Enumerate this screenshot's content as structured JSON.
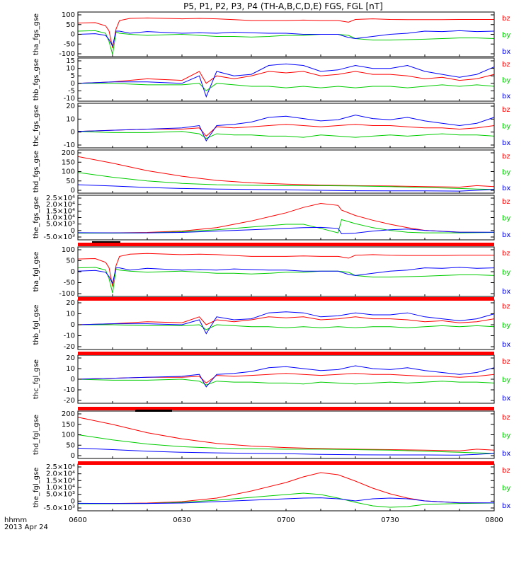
{
  "title": "P5, P1, P2, P3, P4 (TH-A,B,C,D,E) FGS, FGL [nT]",
  "time_axis": {
    "row_label": "hhmm",
    "date_label": "2013 Apr 24",
    "ticks": [
      "0600",
      "0630",
      "0700",
      "0730",
      "0800"
    ]
  },
  "colors": {
    "bz": "#ff0000",
    "by": "#00cc00",
    "bx": "#0000ff",
    "frame": "#000000",
    "status_bar": "#ff0000"
  },
  "chart_data": [
    {
      "type": "line",
      "ylabel": "tha_fgs_gse",
      "yticks": [
        "100",
        "50",
        "0",
        "-50",
        "-100"
      ],
      "ylim": [
        -100,
        110
      ],
      "legend": [
        "bz",
        "by",
        "bx"
      ],
      "x": [
        0,
        5,
        8,
        9,
        10,
        11,
        12,
        15,
        20,
        30,
        35,
        40,
        45,
        50,
        55,
        60,
        65,
        70,
        75,
        78,
        80,
        85,
        90,
        95,
        100,
        105,
        110,
        115,
        120
      ],
      "series": [
        {
          "name": "bz",
          "values": [
            58,
            60,
            45,
            20,
            -60,
            30,
            70,
            80,
            82,
            78,
            80,
            78,
            74,
            70,
            70,
            70,
            72,
            70,
            70,
            62,
            75,
            78,
            75,
            74,
            74,
            74,
            75,
            75,
            75
          ]
        },
        {
          "name": "by",
          "values": [
            20,
            22,
            10,
            -30,
            -90,
            15,
            10,
            5,
            0,
            5,
            0,
            -5,
            -5,
            -8,
            -5,
            0,
            0,
            5,
            5,
            0,
            -15,
            -22,
            -22,
            -20,
            -18,
            -15,
            -12,
            -12,
            -15
          ]
        },
        {
          "name": "bx",
          "values": [
            5,
            8,
            0,
            -20,
            -50,
            20,
            20,
            10,
            18,
            10,
            12,
            10,
            15,
            12,
            10,
            10,
            5,
            5,
            5,
            -10,
            -15,
            -5,
            5,
            10,
            20,
            18,
            22,
            18,
            20
          ]
        }
      ]
    },
    {
      "type": "line",
      "ylabel": "thb_fgs_gse",
      "yticks": [
        "15",
        "10",
        "5",
        "0",
        "-5",
        "-10"
      ],
      "ylim": [
        -12,
        17
      ],
      "legend": [
        "bz",
        "by",
        "bx"
      ],
      "x": [
        0,
        10,
        20,
        30,
        35,
        37,
        40,
        45,
        50,
        55,
        60,
        65,
        70,
        75,
        80,
        85,
        90,
        95,
        100,
        105,
        110,
        115,
        120
      ],
      "series": [
        {
          "name": "bz",
          "values": [
            0,
            1,
            3,
            2,
            8,
            0,
            5,
            3,
            5,
            8,
            7,
            8,
            5,
            6,
            8,
            6,
            6,
            5,
            3,
            4,
            2,
            3,
            6
          ]
        },
        {
          "name": "by",
          "values": [
            0,
            0,
            -1,
            -1,
            0,
            -5,
            0,
            -1,
            -2,
            -2,
            -3,
            -2,
            -3,
            -2,
            -3,
            -2,
            -2,
            -3,
            -2,
            -1,
            -2,
            -1,
            -2
          ]
        },
        {
          "name": "bx",
          "values": [
            0,
            1,
            1,
            0,
            5,
            -9,
            8,
            5,
            6,
            12,
            13,
            12,
            8,
            9,
            12,
            10,
            10,
            12,
            8,
            6,
            4,
            6,
            11
          ]
        }
      ]
    },
    {
      "type": "line",
      "ylabel": "thc_fgs_gse",
      "yticks": [
        "20",
        "10",
        "0",
        "-10"
      ],
      "ylim": [
        -14,
        24
      ],
      "legend": [
        "bz",
        "by",
        "bx"
      ],
      "x": [
        0,
        10,
        20,
        30,
        35,
        37,
        40,
        45,
        50,
        55,
        60,
        65,
        70,
        75,
        80,
        85,
        90,
        95,
        100,
        105,
        110,
        115,
        120
      ],
      "series": [
        {
          "name": "bz",
          "values": [
            0,
            1,
            2,
            2,
            3,
            -4,
            4,
            3,
            4,
            5,
            6,
            5,
            4,
            5,
            6,
            5,
            5,
            4,
            3,
            3,
            2,
            3,
            5
          ]
        },
        {
          "name": "by",
          "values": [
            0,
            -1,
            -1,
            0,
            -2,
            -6,
            -2,
            -3,
            -3,
            -4,
            -4,
            -5,
            -3,
            -4,
            -5,
            -4,
            -3,
            -4,
            -3,
            -2,
            -3,
            -3,
            -4
          ]
        },
        {
          "name": "bx",
          "values": [
            0,
            1,
            2,
            3,
            5,
            -8,
            5,
            6,
            8,
            12,
            13,
            11,
            9,
            10,
            14,
            11,
            10,
            12,
            9,
            7,
            5,
            7,
            12
          ]
        }
      ]
    },
    {
      "type": "line",
      "ylabel": "thd_fgs_gse",
      "yticks": [
        "200",
        "150",
        "100",
        "50",
        "0"
      ],
      "ylim": [
        -10,
        220
      ],
      "legend": [
        "bz",
        "by",
        "bx"
      ],
      "x": [
        0,
        10,
        20,
        30,
        40,
        50,
        60,
        70,
        80,
        90,
        100,
        110,
        115,
        120
      ],
      "series": [
        {
          "name": "bz",
          "values": [
            185,
            150,
            110,
            80,
            58,
            45,
            38,
            33,
            30,
            28,
            25,
            22,
            30,
            25
          ]
        },
        {
          "name": "by",
          "values": [
            100,
            75,
            55,
            42,
            35,
            32,
            30,
            30,
            28,
            25,
            20,
            15,
            12,
            10
          ]
        },
        {
          "name": "bx",
          "values": [
            35,
            28,
            20,
            15,
            12,
            10,
            8,
            5,
            3,
            2,
            2,
            1,
            5,
            10
          ]
        }
      ]
    },
    {
      "type": "line",
      "ylabel": "the_fgs_gse",
      "yticks": [
        "2.5×10⁴",
        "2.0×10⁴",
        "1.5×10⁴",
        "1.0×10⁴",
        "5.0×10³",
        "0",
        "-5.0×10³"
      ],
      "ylim": [
        -6000,
        27000
      ],
      "legend": [
        "bz",
        "by",
        "bx"
      ],
      "x": [
        0,
        10,
        20,
        30,
        40,
        50,
        60,
        65,
        70,
        75,
        76,
        80,
        85,
        90,
        95,
        100,
        110,
        120
      ],
      "series": [
        {
          "name": "bz",
          "values": [
            -1000,
            -800,
            -500,
            500,
            3000,
            8000,
            14000,
            18000,
            21000,
            19500,
            16000,
            12000,
            8500,
            5500,
            3000,
            1000,
            -300,
            -500
          ]
        },
        {
          "name": "by",
          "values": [
            -1000,
            -1000,
            -800,
            0,
            1500,
            3500,
            5500,
            5500,
            2500,
            -800,
            9000,
            6000,
            3000,
            1000,
            -400,
            -800,
            -800,
            -500
          ]
        },
        {
          "name": "bx",
          "values": [
            -700,
            -800,
            -800,
            -500,
            500,
            1500,
            2500,
            3000,
            3200,
            2500,
            -1500,
            -1000,
            500,
            1500,
            2000,
            1000,
            -400,
            -400
          ]
        }
      ]
    },
    {
      "type": "line",
      "ylabel": "tha_fgl_gse",
      "yticks": [
        "100",
        "50",
        "0",
        "-50",
        "-100"
      ],
      "ylim": [
        -110,
        115
      ],
      "legend": [
        "bz",
        "by",
        "bx"
      ],
      "x": [
        0,
        5,
        8,
        9,
        10,
        11,
        12,
        15,
        20,
        30,
        35,
        40,
        45,
        50,
        55,
        60,
        65,
        70,
        75,
        78,
        80,
        85,
        90,
        95,
        100,
        105,
        110,
        115,
        120
      ],
      "series": [
        {
          "name": "bz",
          "values": [
            60,
            62,
            45,
            20,
            -65,
            30,
            72,
            82,
            85,
            80,
            82,
            80,
            76,
            72,
            72,
            72,
            74,
            72,
            72,
            64,
            77,
            80,
            77,
            76,
            76,
            76,
            77,
            77,
            77
          ]
        },
        {
          "name": "by",
          "values": [
            20,
            22,
            10,
            -30,
            -95,
            15,
            10,
            5,
            0,
            5,
            0,
            -5,
            -5,
            -8,
            -5,
            0,
            0,
            5,
            5,
            0,
            -15,
            -22,
            -22,
            -20,
            -18,
            -15,
            -12,
            -12,
            -15
          ]
        },
        {
          "name": "bx",
          "values": [
            5,
            8,
            0,
            -20,
            -50,
            20,
            20,
            10,
            18,
            10,
            12,
            10,
            15,
            12,
            10,
            10,
            5,
            5,
            5,
            -10,
            -15,
            -5,
            5,
            10,
            20,
            18,
            22,
            18,
            20
          ]
        }
      ]
    },
    {
      "type": "line",
      "ylabel": "thb_fgl_gse",
      "yticks": [
        "20",
        "10",
        "0",
        "-10",
        "-20"
      ],
      "ylim": [
        -25,
        25
      ],
      "legend": [
        "bz",
        "by",
        "bx"
      ],
      "x": [
        0,
        10,
        20,
        30,
        35,
        37,
        40,
        45,
        50,
        55,
        60,
        65,
        70,
        75,
        80,
        85,
        90,
        95,
        100,
        105,
        110,
        115,
        120
      ],
      "series": [
        {
          "name": "bz",
          "values": [
            0,
            1,
            3,
            2,
            8,
            0,
            5,
            3,
            5,
            8,
            7,
            8,
            5,
            6,
            8,
            6,
            6,
            5,
            3,
            4,
            2,
            3,
            6
          ]
        },
        {
          "name": "by",
          "values": [
            0,
            0,
            -1,
            -1,
            0,
            -5,
            0,
            -1,
            -2,
            -2,
            -3,
            -2,
            -3,
            -2,
            -3,
            -2,
            -2,
            -3,
            -2,
            -1,
            -2,
            -1,
            -2
          ]
        },
        {
          "name": "bx",
          "values": [
            0,
            1,
            1,
            0,
            5,
            -9,
            8,
            5,
            6,
            12,
            13,
            12,
            8,
            9,
            12,
            10,
            10,
            12,
            8,
            6,
            4,
            6,
            11
          ]
        }
      ]
    },
    {
      "type": "line",
      "ylabel": "thc_fgl_gse",
      "yticks": [
        "20",
        "10",
        "0",
        "-10",
        "-20"
      ],
      "ylim": [
        -25,
        25
      ],
      "legend": [
        "bz",
        "by",
        "bx"
      ],
      "x": [
        0,
        10,
        20,
        30,
        35,
        37,
        40,
        45,
        50,
        55,
        60,
        65,
        70,
        75,
        80,
        85,
        90,
        95,
        100,
        105,
        110,
        115,
        120
      ],
      "series": [
        {
          "name": "bz",
          "values": [
            0,
            1,
            2,
            2,
            3,
            -4,
            4,
            3,
            4,
            5,
            6,
            5,
            4,
            5,
            6,
            5,
            5,
            4,
            3,
            3,
            2,
            3,
            5
          ]
        },
        {
          "name": "by",
          "values": [
            0,
            -1,
            -1,
            0,
            -2,
            -6,
            -2,
            -3,
            -3,
            -4,
            -4,
            -5,
            -3,
            -4,
            -5,
            -4,
            -3,
            -4,
            -3,
            -2,
            -3,
            -3,
            -4
          ]
        },
        {
          "name": "bx",
          "values": [
            0,
            1,
            2,
            3,
            5,
            -8,
            5,
            6,
            8,
            12,
            13,
            11,
            9,
            10,
            14,
            11,
            10,
            12,
            9,
            7,
            5,
            7,
            12
          ]
        }
      ]
    },
    {
      "type": "line",
      "ylabel": "thd_fgl_gse",
      "yticks": [
        "200",
        "150",
        "100",
        "50",
        "0"
      ],
      "ylim": [
        -15,
        215
      ],
      "legend": [
        "bz",
        "by",
        "bx"
      ],
      "x": [
        0,
        10,
        20,
        30,
        40,
        50,
        60,
        70,
        80,
        90,
        100,
        110,
        115,
        120
      ],
      "series": [
        {
          "name": "bz",
          "values": [
            185,
            150,
            110,
            80,
            58,
            45,
            38,
            33,
            30,
            28,
            25,
            22,
            30,
            25
          ]
        },
        {
          "name": "by",
          "values": [
            100,
            75,
            55,
            42,
            35,
            32,
            30,
            30,
            28,
            25,
            20,
            15,
            12,
            10
          ]
        },
        {
          "name": "bx",
          "values": [
            35,
            28,
            20,
            15,
            12,
            10,
            8,
            5,
            3,
            2,
            2,
            1,
            5,
            10
          ]
        }
      ]
    },
    {
      "type": "line",
      "ylabel": "the_fgl_gse",
      "yticks": [
        "2.5×10⁴",
        "2.0×10⁴",
        "1.5×10⁴",
        "1.0×10⁴",
        "5.0×10³",
        "0",
        "-5.0×10³"
      ],
      "ylim": [
        -6000,
        27000
      ],
      "legend": [
        "bz",
        "by",
        "bx"
      ],
      "x": [
        0,
        10,
        20,
        30,
        40,
        50,
        60,
        65,
        70,
        75,
        80,
        85,
        90,
        95,
        100,
        110,
        120
      ],
      "series": [
        {
          "name": "bz",
          "values": [
            -1000,
            -800,
            -500,
            500,
            3000,
            8000,
            14000,
            18000,
            21000,
            19500,
            15000,
            10000,
            6000,
            3000,
            1000,
            -300,
            -500
          ]
        },
        {
          "name": "by",
          "values": [
            -1000,
            -1000,
            -800,
            0,
            1500,
            3500,
            5500,
            6500,
            5500,
            3000,
            0,
            -2500,
            -3500,
            -3000,
            -1500,
            -800,
            -500
          ]
        },
        {
          "name": "bx",
          "values": [
            -700,
            -800,
            -800,
            -500,
            500,
            1500,
            2500,
            3000,
            3200,
            2500,
            1000,
            2500,
            3000,
            2500,
            1000,
            -400,
            -400
          ]
        }
      ]
    }
  ]
}
